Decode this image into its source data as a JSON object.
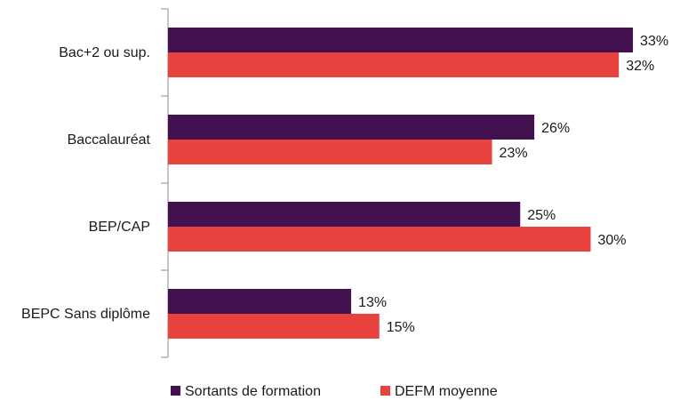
{
  "chart_data": {
    "type": "bar",
    "orientation": "horizontal",
    "categories": [
      "Bac+2 ou sup.",
      "Baccalauréat",
      "BEP/CAP",
      "BEPC Sans diplôme"
    ],
    "series": [
      {
        "name": "Sortants de formation",
        "color": "#43114f",
        "values": [
          33,
          26,
          25,
          13
        ],
        "labels": [
          "33%",
          "26%",
          "25%",
          "13%"
        ]
      },
      {
        "name": "DEFM moyenne",
        "color": "#e8423e",
        "values": [
          32,
          23,
          30,
          15
        ],
        "labels": [
          "32%",
          "23%",
          "30%",
          "15%"
        ]
      }
    ],
    "xlim": [
      0,
      35
    ],
    "grid": false,
    "legend_position": "bottom"
  }
}
